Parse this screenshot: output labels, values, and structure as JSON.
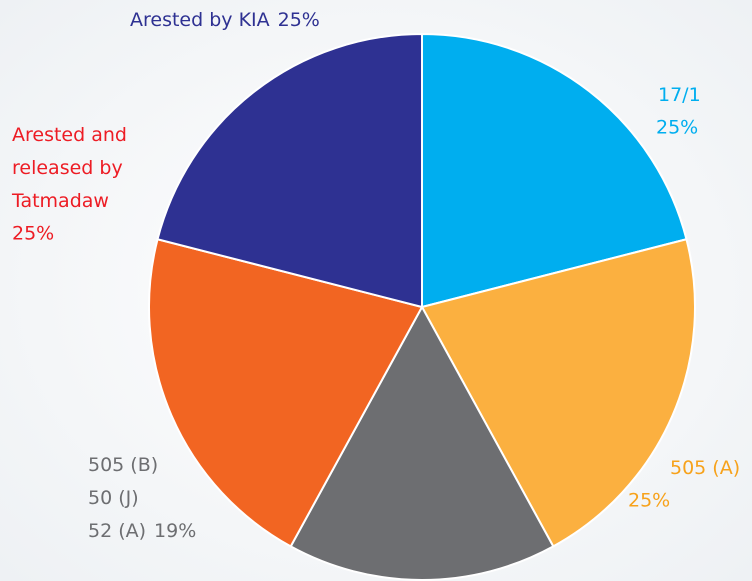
{
  "chart_data": {
    "type": "pie",
    "categories": [
      [
        "17/1"
      ],
      [
        "505 (A)"
      ],
      [
        "505 (B)",
        "50 (J)",
        "52 (A)"
      ],
      [
        "Arested and",
        "released by",
        "Tatmadaw"
      ],
      [
        "Arested by KIA"
      ]
    ],
    "values": [
      25,
      25,
      19,
      25,
      25
    ],
    "value_labels": [
      "25%",
      "25%",
      "19%",
      "25%",
      "25%"
    ],
    "colors": [
      "#00aeef",
      "#fbb040",
      "#6d6e71",
      "#f26522",
      "#2e3192"
    ],
    "label_colors": [
      "#00aeef",
      "#f7a21b",
      "#6d6e71",
      "#ed1c24",
      "#2e3192"
    ]
  }
}
